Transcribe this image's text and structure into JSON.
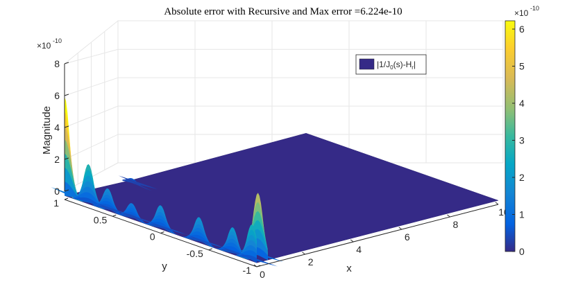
{
  "chart_data": {
    "type": "surface",
    "title": "Absolute error with Recursive and Max error =6.224e-10",
    "xlabel": "x",
    "ylabel": "y",
    "zlabel": "Magnitude",
    "z_exponent_label": "×10",
    "z_exponent": "-10",
    "x_ticks": [
      "0",
      "2",
      "4",
      "6",
      "8",
      "10"
    ],
    "y_ticks": [
      "1",
      "0.5",
      "0",
      "-0.5",
      "-1"
    ],
    "z_ticks": [
      "0",
      "2",
      "4",
      "6",
      "8"
    ],
    "xlim": [
      0,
      10
    ],
    "ylim": [
      -1,
      1
    ],
    "zlim": [
      0,
      8
    ],
    "grid": true,
    "legend": {
      "position": "top-right",
      "label_parts": [
        "|1/J",
        "0",
        "(s)-H",
        "r",
        "|"
      ]
    },
    "colorbar": {
      "ticks": [
        "0",
        "1",
        "2",
        "3",
        "4",
        "5",
        "6"
      ],
      "exponent_label": "×10",
      "exponent": "-10",
      "range": [
        0,
        6.224
      ],
      "colormap": "parula"
    },
    "max_error": 6.224,
    "peaks": [
      {
        "x": 0.0,
        "y": 1.0,
        "z": 6.2
      },
      {
        "x": 0.0,
        "y": 0.75,
        "z": 2.5
      },
      {
        "x": 0.0,
        "y": 0.55,
        "z": 1.4
      },
      {
        "x": 0.0,
        "y": 0.3,
        "z": 1.0
      },
      {
        "x": 0.0,
        "y": 0.0,
        "z": 1.5
      },
      {
        "x": 0.0,
        "y": -0.4,
        "z": 1.6
      },
      {
        "x": 0.0,
        "y": -0.75,
        "z": 1.7
      },
      {
        "x": 0.0,
        "y": -0.95,
        "z": 2.3
      },
      {
        "x": 0.45,
        "y": -0.9,
        "z": 4.0
      },
      {
        "x": 2.4,
        "y": 0.9,
        "z": 0.35
      }
    ],
    "floor_level": 0.25
  },
  "colors": {
    "floor": "#352a87",
    "grid": "#e6e6e6",
    "axis": "#262626"
  }
}
